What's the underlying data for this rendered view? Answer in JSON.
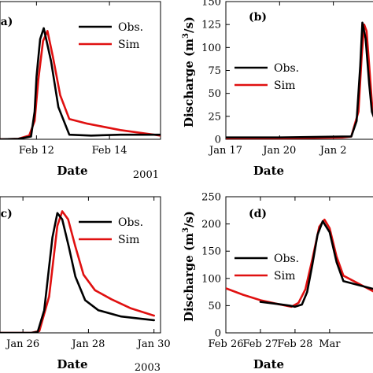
{
  "chart_data": [
    {
      "panel": "(a)",
      "type": "line",
      "x_is_time": true,
      "xlabel": "Date",
      "ylabel": "",
      "year_note": "2001",
      "xlim": [
        11,
        15.4
      ],
      "ylim": [
        0,
        150
      ],
      "xticks": [
        {
          "v": 12,
          "label": "Feb 12"
        },
        {
          "v": 14,
          "label": "Feb 14"
        }
      ],
      "yticks": [],
      "legend": {
        "position": "top-right",
        "entries": [
          "Obs.",
          "Sim"
        ]
      },
      "series": [
        {
          "name": "Obs.",
          "color": "#000000",
          "x": [
            11.0,
            11.5,
            11.85,
            11.95,
            12.0,
            12.1,
            12.2,
            12.4,
            12.6,
            12.9,
            13.5,
            14.3,
            15.4
          ],
          "y": [
            0,
            0.5,
            3,
            30,
            68,
            109,
            121,
            85,
            35,
            5,
            4,
            5,
            5
          ]
        },
        {
          "name": "Sim",
          "color": "#e01010",
          "x": [
            11.0,
            11.5,
            11.8,
            11.95,
            12.05,
            12.18,
            12.3,
            12.45,
            12.65,
            12.9,
            13.4,
            14.3,
            15.4
          ],
          "y": [
            0,
            0.5,
            4,
            20,
            65,
            107,
            118,
            90,
            48,
            22,
            17,
            10,
            4
          ]
        }
      ]
    },
    {
      "panel": "(b)",
      "type": "line",
      "x_is_time": true,
      "xlabel": "Date",
      "ylabel": "Discharge (m³/s)",
      "ylabel_parts": [
        "Discharge (m",
        "3",
        "/s)"
      ],
      "year_note": "",
      "xlim": [
        17,
        25.3
      ],
      "ylim": [
        0,
        150
      ],
      "xticks": [
        {
          "v": 17,
          "label": "Jan 17"
        },
        {
          "v": 20,
          "label": "Jan 20"
        },
        {
          "v": 23,
          "label": "Jan 2"
        }
      ],
      "yticks": [
        0,
        25,
        50,
        75,
        100,
        125,
        150
      ],
      "legend": {
        "position": "top-left",
        "entries": [
          "Obs.",
          "Sim"
        ]
      },
      "series": [
        {
          "name": "Obs.",
          "color": "#000000",
          "x": [
            17.0,
            20.0,
            23.5,
            24.0,
            24.3,
            24.5,
            24.62,
            24.8,
            25.0,
            25.15,
            25.3
          ],
          "y": [
            2,
            2,
            3,
            3,
            20,
            80,
            127,
            110,
            60,
            30,
            22
          ]
        },
        {
          "name": "Sim",
          "color": "#e01010",
          "x": [
            17.0,
            20.0,
            23.5,
            24.0,
            24.4,
            24.58,
            24.72,
            24.85,
            25.0,
            25.15,
            25.3
          ],
          "y": [
            0.5,
            1,
            2,
            3,
            30,
            90,
            125,
            118,
            80,
            40,
            24
          ]
        }
      ]
    },
    {
      "panel": "(c)",
      "type": "line",
      "x_is_time": true,
      "xlabel": "Date",
      "ylabel": "",
      "year_note": "2003",
      "xlim": [
        25.3,
        30.2
      ],
      "ylim": [
        0,
        150
      ],
      "xticks": [
        {
          "v": 26,
          "label": "Jan 26"
        },
        {
          "v": 28,
          "label": "Jan 28"
        },
        {
          "v": 30,
          "label": "Jan 30"
        }
      ],
      "yticks": [],
      "legend": {
        "position": "top-right",
        "entries": [
          "Obs.",
          "Sim"
        ]
      },
      "series": [
        {
          "name": "Obs.",
          "color": "#000000",
          "x": [
            25.3,
            26.25,
            26.45,
            26.65,
            26.9,
            27.05,
            27.2,
            27.4,
            27.6,
            27.9,
            28.3,
            29.0,
            30.0
          ],
          "y": [
            0,
            0,
            1,
            25,
            105,
            132,
            125,
            95,
            62,
            36,
            25,
            18,
            14
          ]
        },
        {
          "name": "Sim",
          "color": "#e01010",
          "x": [
            25.3,
            26.25,
            26.5,
            26.8,
            27.05,
            27.2,
            27.38,
            27.6,
            27.85,
            28.2,
            28.7,
            29.3,
            30.0
          ],
          "y": [
            0,
            0,
            2,
            40,
            118,
            134,
            125,
            95,
            64,
            47,
            37,
            27,
            19
          ]
        }
      ]
    },
    {
      "panel": "(d)",
      "type": "line",
      "x_is_time": true,
      "xlabel": "Date",
      "ylabel": "Discharge (m³/s)",
      "ylabel_parts": [
        "Discharge (m",
        "3",
        "/s)"
      ],
      "year_note": "",
      "xlim": [
        26,
        30.3
      ],
      "ylim": [
        0,
        250
      ],
      "xticks": [
        {
          "v": 26,
          "label": "Feb 26"
        },
        {
          "v": 27,
          "label": "Feb 27"
        },
        {
          "v": 28,
          "label": "Feb 28"
        },
        {
          "v": 29,
          "label": "Mar"
        }
      ],
      "yticks": [
        0,
        50,
        100,
        150,
        200,
        250
      ],
      "legend": {
        "position": "center-left",
        "entries": [
          "Obs.",
          "Sim"
        ]
      },
      "series": [
        {
          "name": "Obs.",
          "color": "#000000",
          "x": [
            27.0,
            27.5,
            27.85,
            28.0,
            28.2,
            28.35,
            28.5,
            28.65,
            28.8,
            29.0,
            29.2,
            29.4,
            30.3
          ],
          "y": [
            57,
            53,
            50,
            48,
            52,
            75,
            125,
            180,
            205,
            185,
            130,
            95,
            80
          ]
        },
        {
          "name": "Sim",
          "color": "#e01010",
          "x": [
            26.0,
            26.5,
            27.0,
            27.5,
            27.9,
            28.1,
            28.3,
            28.5,
            28.7,
            28.85,
            29.0,
            29.2,
            29.4,
            30.3
          ],
          "y": [
            82,
            70,
            60,
            53,
            48,
            55,
            80,
            135,
            195,
            208,
            192,
            140,
            105,
            75
          ]
        }
      ]
    }
  ]
}
